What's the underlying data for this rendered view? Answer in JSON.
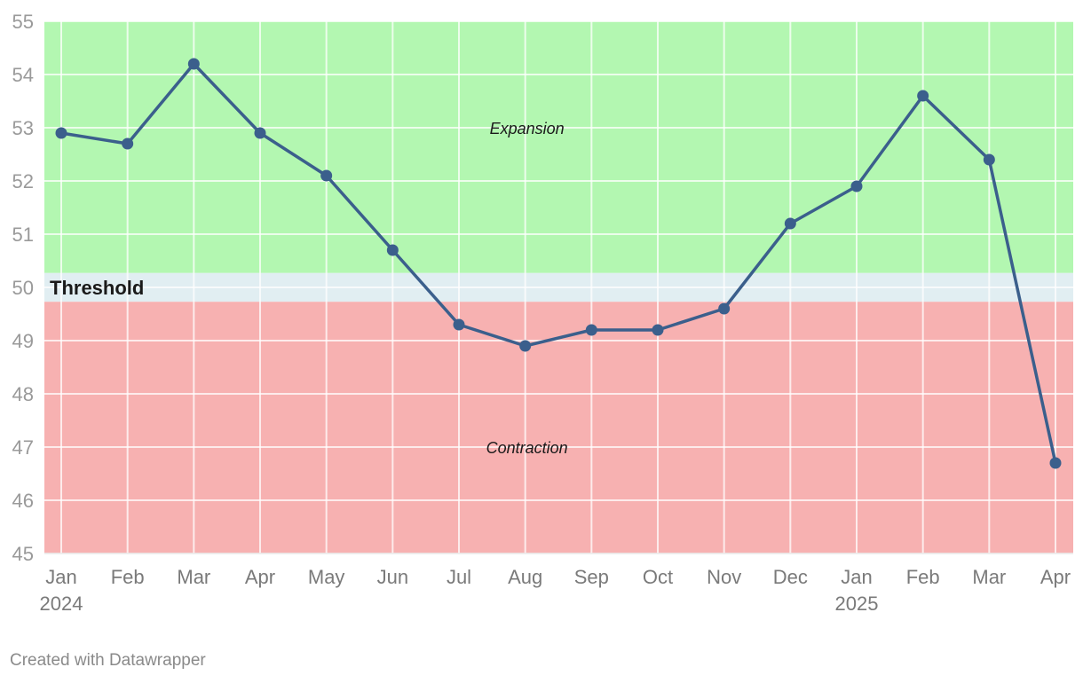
{
  "chart_data": {
    "type": "line",
    "title": "",
    "xlabel": "",
    "ylabel": "",
    "ylim": [
      45,
      55
    ],
    "yticks": [
      45,
      46,
      47,
      48,
      49,
      50,
      51,
      52,
      53,
      54,
      55
    ],
    "grid": true,
    "categories": [
      "Jan",
      "Feb",
      "Mar",
      "Apr",
      "May",
      "Jun",
      "Jul",
      "Aug",
      "Sep",
      "Oct",
      "Nov",
      "Dec",
      "Jan",
      "Feb",
      "Mar",
      "Apr"
    ],
    "year_labels": [
      "2024",
      "",
      "",
      "",
      "",
      "",
      "",
      "",
      "",
      "",
      "",
      "",
      "2025",
      "",
      "",
      ""
    ],
    "series": [
      {
        "color": "#3b5f8c",
        "values": [
          52.9,
          52.7,
          54.2,
          52.9,
          52.1,
          50.7,
          49.3,
          48.9,
          49.2,
          49.2,
          49.6,
          51.2,
          51.9,
          53.6,
          52.4,
          46.7
        ]
      }
    ],
    "bands": [
      {
        "label": "Expansion",
        "from": 50.27,
        "to": 55,
        "color": "#b3f7b1"
      },
      {
        "label": "Threshold",
        "from": 49.73,
        "to": 50.27,
        "color": "#e1eef2"
      },
      {
        "label": "Contraction",
        "from": 45,
        "to": 49.73,
        "color": "#f7b1b1"
      }
    ],
    "annotations": [
      {
        "text": "Expansion",
        "x_index": 7,
        "y": 53.0
      },
      {
        "text": "Contraction",
        "x_index": 7,
        "y": 47.0
      }
    ],
    "threshold": {
      "label": "Threshold",
      "value": 50
    }
  },
  "footer": {
    "credit": "Created with Datawrapper"
  }
}
